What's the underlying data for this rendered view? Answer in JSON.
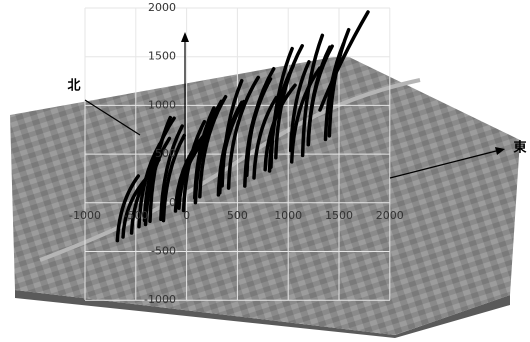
{
  "labels": {
    "north": "北",
    "east": "東"
  },
  "vertical_ticks": [
    "2000",
    "1500",
    "1000",
    "500",
    "0",
    "-500",
    "-1000"
  ],
  "horizontal_ticks": [
    "-1000",
    "-500",
    "0",
    "500",
    "1000",
    "1500",
    "2000"
  ]
}
